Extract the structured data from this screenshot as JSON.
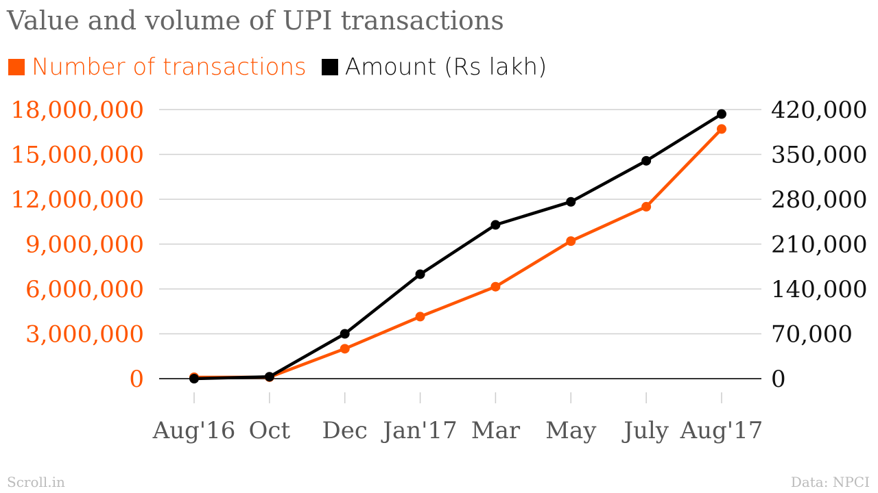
{
  "chart_data": {
    "type": "line",
    "title": "Value and volume of UPI transactions",
    "categories": [
      "Aug'16",
      "Oct",
      "Dec",
      "Jan'17",
      "Mar",
      "May",
      "July",
      "Aug'17"
    ],
    "series": [
      {
        "name": "Number of transactions",
        "axis": "left",
        "color": "#ff5500",
        "values": [
          93000,
          100000,
          2000000,
          4150000,
          6150000,
          9200000,
          11500000,
          16700000
        ]
      },
      {
        "name": "Amount (Rs lakh)",
        "axis": "right",
        "color": "#000000",
        "values": [
          0,
          3000,
          70000,
          163000,
          240000,
          276000,
          340000,
          413000
        ]
      }
    ],
    "y_left": {
      "ylim": [
        0,
        18000000
      ],
      "ticks": [
        0,
        3000000,
        6000000,
        9000000,
        12000000,
        15000000,
        18000000
      ],
      "tick_labels": [
        "0",
        "3,000,000",
        "6,000,000",
        "9,000,000",
        "12,000,000",
        "15,000,000",
        "18,000,000"
      ],
      "color": "#ff5500"
    },
    "y_right": {
      "ylim": [
        0,
        420000
      ],
      "ticks": [
        0,
        70000,
        140000,
        210000,
        280000,
        350000,
        420000
      ],
      "tick_labels": [
        "0",
        "70,000",
        "140,000",
        "210,000",
        "280,000",
        "350,000",
        "420,000"
      ],
      "color": "#111111"
    },
    "grid": true,
    "legend_position": "top-left"
  },
  "footer": {
    "source_left": "Scroll.in",
    "source_right": "Data: NPCI"
  }
}
